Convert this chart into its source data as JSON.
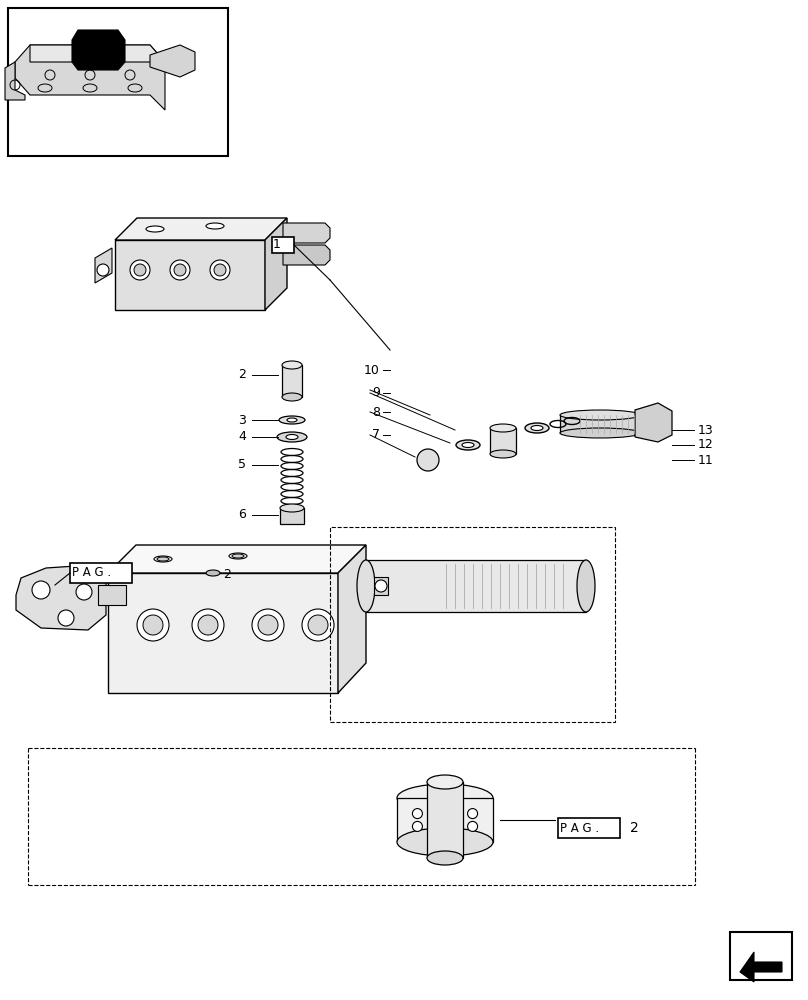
{
  "bg_color": "#ffffff",
  "line_color": "#000000",
  "light_gray": "#cccccc",
  "mid_gray": "#888888",
  "dark_gray": "#444444",
  "title": "",
  "fig_width": 8.08,
  "fig_height": 10.0
}
